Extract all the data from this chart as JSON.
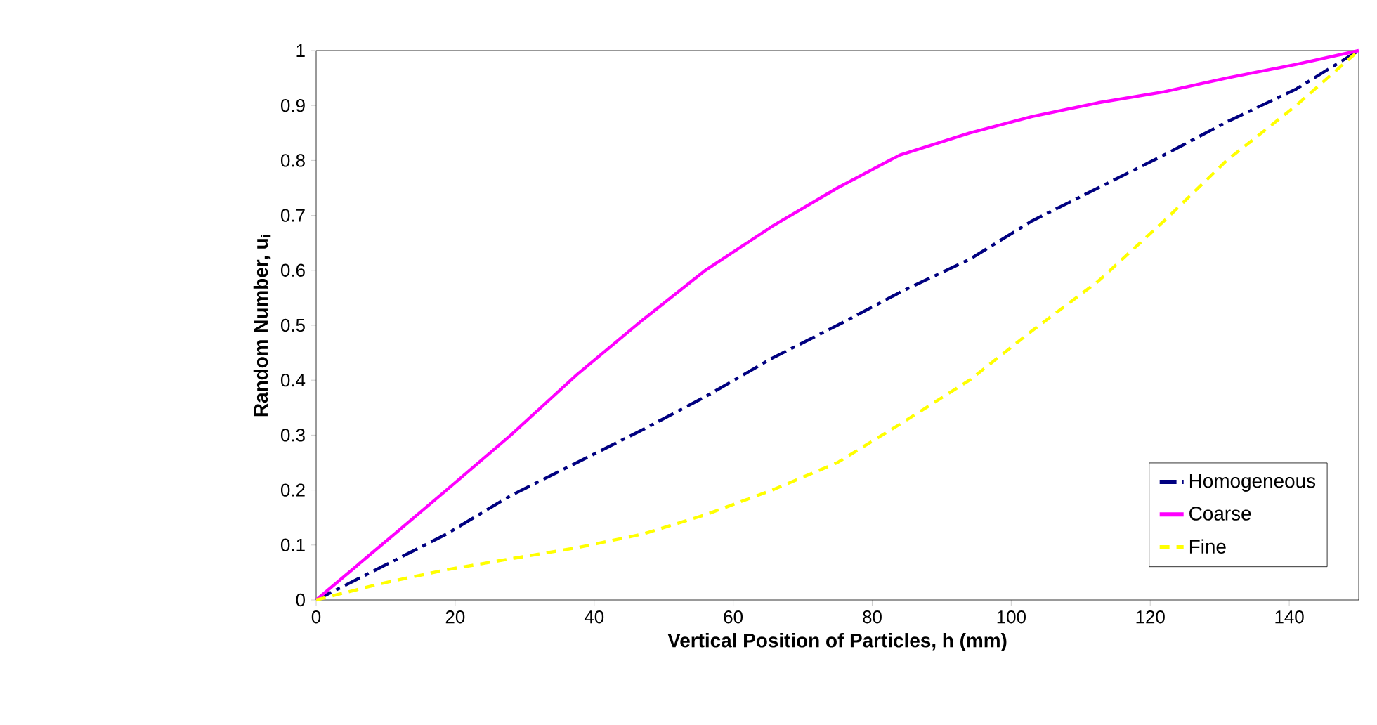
{
  "chart_data": {
    "type": "line",
    "xlabel": "Vertical Position of Particles, h (mm)",
    "ylabel": "Random Number, u$_{i}$",
    "xlim": [
      0,
      150
    ],
    "ylim": [
      0,
      1
    ],
    "xticks": [
      0,
      20,
      40,
      60,
      80,
      100,
      120,
      140
    ],
    "yticks": [
      0,
      0.1,
      0.2,
      0.3,
      0.4,
      0.5,
      0.6,
      0.7,
      0.8,
      0.9,
      1
    ],
    "grid": false,
    "legend": "bottom right",
    "marker": "none",
    "x": [
      0,
      9.4,
      18.75,
      28,
      37.5,
      47,
      56,
      65.6,
      75,
      84,
      94,
      103,
      112.5,
      122,
      131,
      141,
      150
    ],
    "series": [
      {
        "name": "Homogeneous",
        "color": "#000080",
        "line_style": "dashdot",
        "values": [
          0,
          0.06,
          0.12,
          0.19,
          0.25,
          0.31,
          0.37,
          0.44,
          0.5,
          0.56,
          0.62,
          0.69,
          0.75,
          0.81,
          0.87,
          0.93,
          1
        ]
      },
      {
        "name": "Coarse",
        "color": "#ff00ff",
        "line_style": "solid",
        "values": [
          0,
          0.1,
          0.2,
          0.3,
          0.41,
          0.51,
          0.6,
          0.68,
          0.75,
          0.81,
          0.85,
          0.88,
          0.905,
          0.925,
          0.95,
          0.975,
          1
        ]
      },
      {
        "name": "Fine",
        "color": "#ffff00",
        "line_style": "dashed",
        "values": [
          0,
          0.03,
          0.055,
          0.075,
          0.095,
          0.12,
          0.155,
          0.2,
          0.25,
          0.32,
          0.4,
          0.49,
          0.58,
          0.69,
          0.8,
          0.9,
          1
        ]
      }
    ]
  }
}
